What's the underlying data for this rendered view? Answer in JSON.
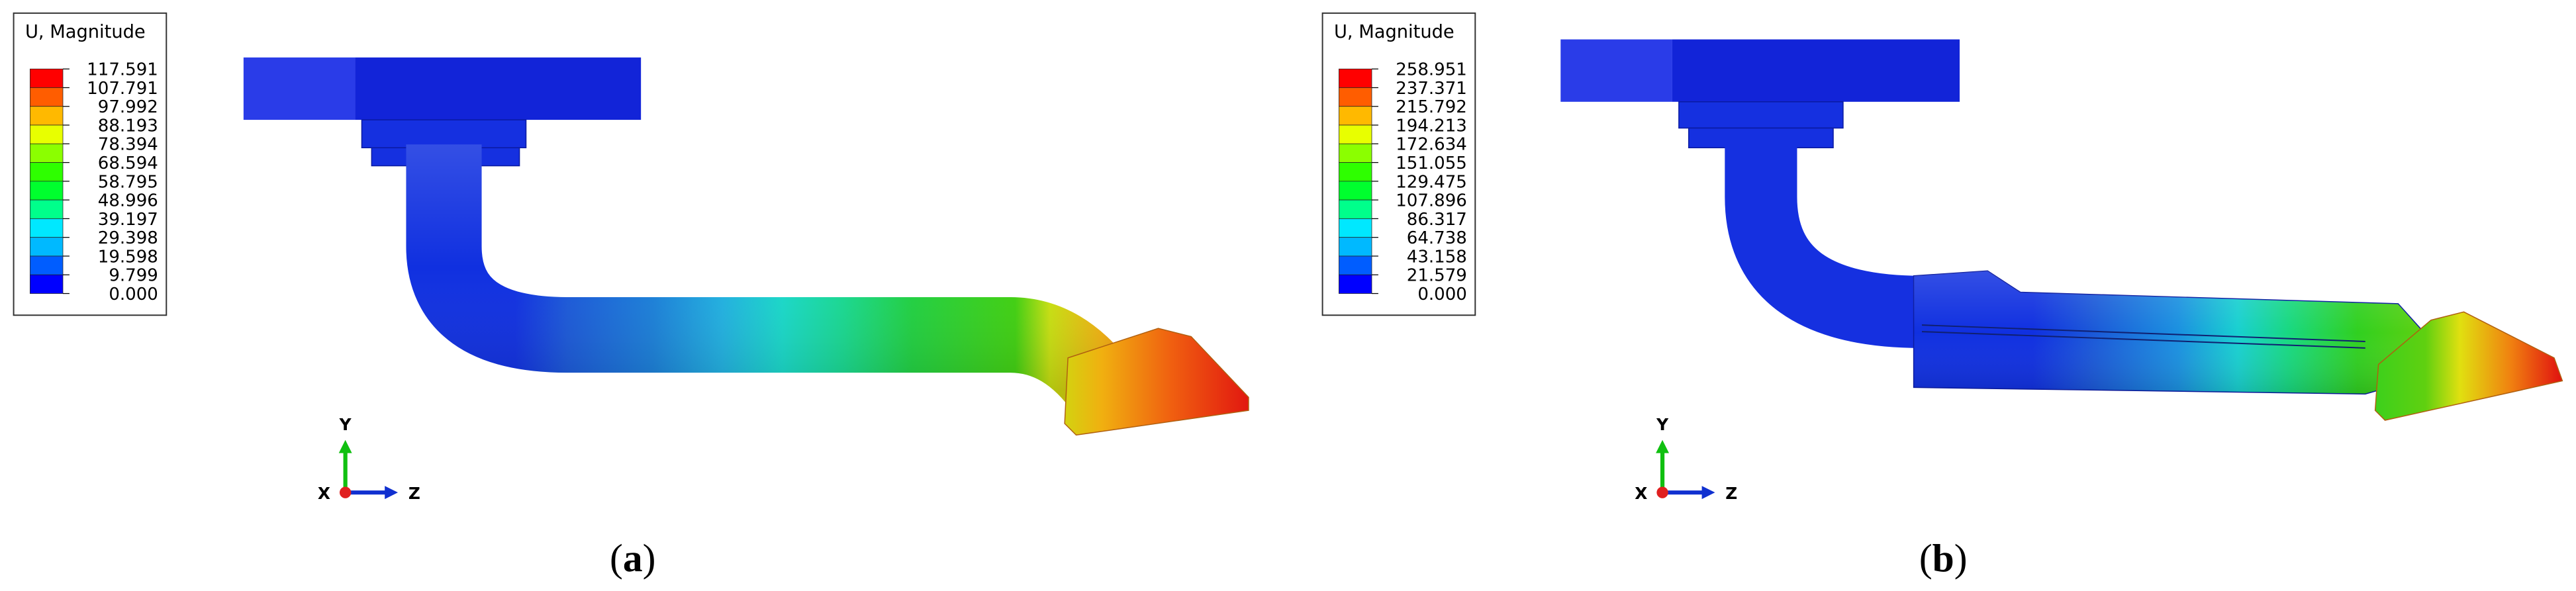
{
  "panels": [
    {
      "legend": {
        "title": "U, Magnitude",
        "values": [
          "117.591",
          "107.791",
          "97.992",
          "88.193",
          "78.394",
          "68.594",
          "58.795",
          "48.996",
          "39.197",
          "29.398",
          "19.598",
          "9.799",
          "0.000"
        ]
      },
      "triad": {
        "y": "Y",
        "x": "X",
        "z": "Z"
      },
      "caption": [
        "(",
        "a",
        ")"
      ]
    },
    {
      "legend": {
        "title": "U, Magnitude",
        "values": [
          "258.951",
          "237.371",
          "215.792",
          "194.213",
          "172.634",
          "151.055",
          "129.475",
          "107.896",
          "86.317",
          "64.738",
          "43.158",
          "21.579",
          "0.000"
        ]
      },
      "triad": {
        "y": "Y",
        "x": "X",
        "z": "Z"
      },
      "caption": [
        "(",
        "b",
        ")"
      ]
    }
  ]
}
